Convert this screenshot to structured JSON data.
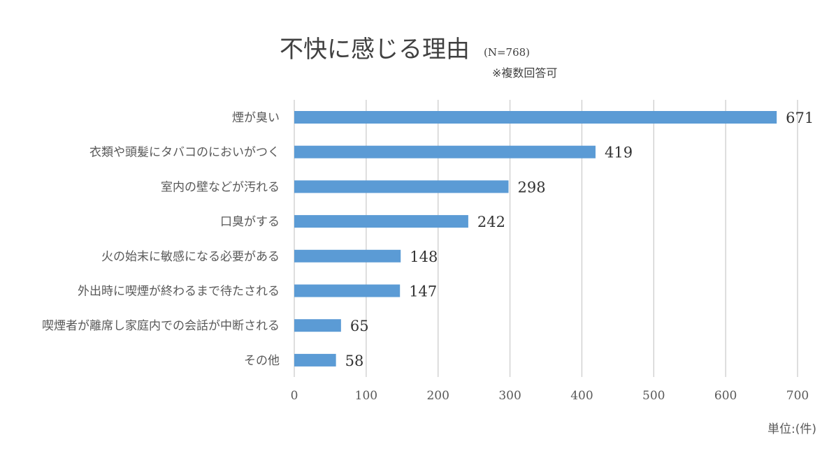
{
  "chart_data": {
    "type": "bar",
    "orientation": "horizontal",
    "title": "不快に感じる理由",
    "title_note": "(N=768)",
    "subtitle": "※複数回答可",
    "unit_label": "単位:(件)",
    "categories": [
      "煙が臭い",
      "衣類や頭髪にタバコのにおいがつく",
      "室内の壁などが汚れる",
      "口臭がする",
      "火の始末に敏感になる必要がある",
      "外出時に喫煙が終わるまで待たされる",
      "喫煙者が離席し家庭内での会話が中断される",
      "その他"
    ],
    "values": [
      671,
      419,
      298,
      242,
      148,
      147,
      65,
      58
    ],
    "xlim": [
      0,
      700
    ],
    "xticks": [
      "0",
      "100",
      "200",
      "300",
      "400",
      "500",
      "600",
      "700"
    ],
    "grid": true,
    "bar_color": "#5b9bd5"
  }
}
